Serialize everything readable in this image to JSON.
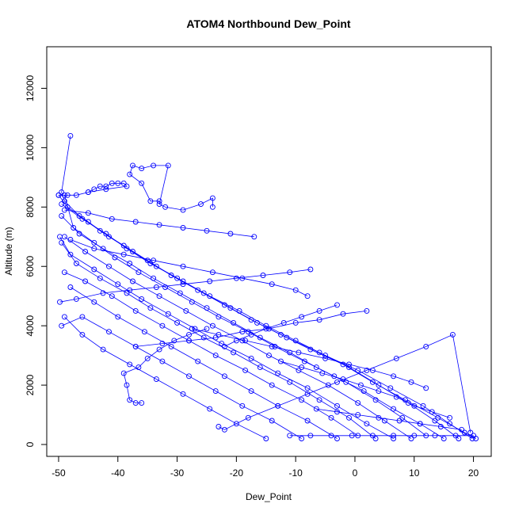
{
  "chart_data": {
    "type": "scatter",
    "title": "ATOM4 Northbound Dew_Point",
    "xlabel": "Dew_Point",
    "ylabel": "Altitude (m)",
    "xlim": [
      -52,
      23
    ],
    "ylim": [
      -400,
      13400
    ],
    "x_ticks": [
      -50,
      -40,
      -30,
      -20,
      -10,
      0,
      10,
      20
    ],
    "y_ticks": [
      0,
      2000,
      4000,
      6000,
      8000,
      10000,
      12000
    ],
    "x_tick_labels": [
      "-50",
      "-40",
      "-30",
      "-20",
      "-10",
      "0",
      "10",
      "20"
    ],
    "y_tick_labels": [
      "0",
      "2000",
      "4000",
      "6000",
      "8000",
      "10000",
      "12000"
    ],
    "grid": false,
    "color": "#0000ff",
    "series": [
      {
        "x": [
          20.4,
          18.5,
          14.0,
          8.5,
          3.0,
          -2.0,
          -7.5,
          -12.5,
          -17.5,
          -22.0,
          -26.5,
          -31.0,
          -35.0,
          -39.0,
          -43.0,
          -46.5,
          -49.0,
          -49.5,
          -48.0
        ],
        "y": [
          200,
          400,
          900,
          1500,
          2100,
          2700,
          3200,
          3700,
          4200,
          4700,
          5200,
          5700,
          6200,
          6700,
          7200,
          7700,
          8200,
          8500,
          10400
        ]
      },
      {
        "x": [
          19.8,
          16.0,
          11.5,
          6.0,
          0.5,
          -5.0,
          -10.0,
          -15.0,
          -19.5,
          -24.5,
          -29.0,
          -33.5,
          -37.5,
          -41.5,
          -45.0,
          -48.5,
          -50.0
        ],
        "y": [
          200,
          700,
          1300,
          1900,
          2500,
          3000,
          3500,
          4000,
          4500,
          5000,
          5500,
          6000,
          6500,
          7000,
          7500,
          8000,
          8400
        ]
      },
      {
        "x": [
          17.5,
          13.5,
          9.0,
          4.0,
          -1.0,
          -6.0,
          -11.5,
          -16.5,
          -21.0,
          -25.5,
          -30.0,
          -34.5,
          -38.5,
          -42.0,
          -46.0,
          -49.5
        ],
        "y": [
          200,
          800,
          1400,
          2000,
          2600,
          3100,
          3600,
          4100,
          4600,
          5100,
          5600,
          6100,
          6600,
          7100,
          7600,
          8100
        ]
      },
      {
        "x": [
          15.0,
          11.0,
          6.5,
          1.5,
          -3.5,
          -8.5,
          -13.5,
          -18.0,
          -23.0,
          -27.5,
          -32.0,
          -36.5,
          -40.5,
          -44.0,
          -47.5,
          -49.0
        ],
        "y": [
          200,
          700,
          1200,
          1800,
          2300,
          2800,
          3300,
          3800,
          4300,
          4800,
          5300,
          5800,
          6300,
          6800,
          7300,
          8400
        ]
      },
      {
        "x": [
          12.0,
          8.0,
          3.5,
          -1.5,
          -6.5,
          -11.0,
          -16.0,
          -20.5,
          -25.0,
          -29.5,
          -34.0,
          -38.0,
          -42.5,
          -46.5,
          -49.5
        ],
        "y": [
          300,
          900,
          1500,
          2100,
          2600,
          3100,
          3600,
          4100,
          4600,
          5100,
          5600,
          6100,
          6600,
          7100,
          7700
        ]
      },
      {
        "x": [
          9.5,
          5.0,
          0.5,
          -4.5,
          -9.5,
          -14.5,
          -19.0,
          -24.0,
          -28.5,
          -33.0,
          -37.5,
          -41.5,
          -45.5,
          -49.0
        ],
        "y": [
          200,
          800,
          1400,
          2000,
          2500,
          3000,
          3500,
          4000,
          4500,
          5000,
          5500,
          6000,
          6500,
          7000
        ]
      },
      {
        "x": [
          6.5,
          2.0,
          -3.0,
          -8.0,
          -13.0,
          -17.5,
          -22.5,
          -27.0,
          -31.5,
          -36.0,
          -40.0,
          -44.0,
          -48.0,
          -49.8
        ],
        "y": [
          200,
          700,
          1300,
          1900,
          2400,
          2900,
          3400,
          3900,
          4400,
          4900,
          5400,
          5900,
          6400,
          7000
        ]
      },
      {
        "x": [
          3.5,
          -1.0,
          -6.0,
          -11.0,
          -16.0,
          -20.5,
          -25.5,
          -30.0,
          -34.5,
          -38.5,
          -43.0,
          -47.0,
          -49.5
        ],
        "y": [
          200,
          900,
          1500,
          2100,
          2600,
          3100,
          3600,
          4100,
          4600,
          5100,
          5600,
          6100,
          6800
        ]
      },
      {
        "x": [
          0.5,
          -4.0,
          -9.0,
          -14.0,
          -18.5,
          -23.5,
          -28.0,
          -32.5,
          -37.0,
          -41.0,
          -45.5,
          -49.0
        ],
        "y": [
          300,
          900,
          1500,
          2000,
          2500,
          3000,
          3500,
          4000,
          4500,
          5000,
          5500,
          5800
        ]
      },
      {
        "x": [
          -3.0,
          -8.0,
          -13.0,
          -17.5,
          -22.0,
          -26.5,
          -31.0,
          -35.5,
          -40.0,
          -44.0,
          -48.0
        ],
        "y": [
          200,
          800,
          1300,
          1800,
          2300,
          2800,
          3300,
          3800,
          4300,
          4800,
          5300
        ]
      },
      {
        "x": [
          -9.0,
          -14.0,
          -19.0,
          -23.5,
          -28.0,
          -32.5,
          -37.0,
          -41.5,
          -46.0,
          -49.5
        ],
        "y": [
          200,
          800,
          1300,
          1800,
          2300,
          2800,
          3300,
          3800,
          4300,
          4000
        ]
      },
      {
        "x": [
          -15.0,
          -20.0,
          -24.5,
          -29.0,
          -33.5,
          -38.0,
          -42.5,
          -46.0,
          -49.0
        ],
        "y": [
          200,
          700,
          1200,
          1700,
          2200,
          2700,
          3200,
          3700,
          4300
        ]
      },
      {
        "x": [
          -23.0,
          -22.0,
          -18.0,
          -13.0,
          -8.0,
          -3.0,
          2.0,
          7.0,
          12.0,
          16.5,
          19.5
        ],
        "y": [
          600,
          500,
          900,
          1300,
          1700,
          2100,
          2500,
          2900,
          3300,
          3700,
          400
        ]
      },
      {
        "x": [
          -36.0,
          -37.0,
          -38.0,
          -38.5,
          -39.0,
          -36.5,
          -35.0,
          -33.0,
          -30.5,
          -28.0,
          -25.0
        ],
        "y": [
          1400,
          1400,
          1500,
          2000,
          2400,
          2600,
          2900,
          3200,
          3500,
          3700,
          3900
        ]
      },
      {
        "x": [
          -24.0,
          -24.0,
          -26.0,
          -29.0,
          -32.0,
          -33.0,
          -31.5,
          -34.0,
          -36.0,
          -37.5,
          -38.0,
          -36.0,
          -34.5,
          -33.0
        ],
        "y": [
          8000,
          8300,
          8100,
          7900,
          8000,
          8100,
          9400,
          9400,
          9300,
          9400,
          9100,
          8800,
          8200,
          8200
        ]
      },
      {
        "x": [
          -45.0,
          -44.0,
          -43.0,
          -42.0,
          -41.0,
          -40.0,
          -39.0,
          -38.5,
          -42.0,
          -45.0,
          -47.0,
          -48.5,
          -50.0
        ],
        "y": [
          8500,
          8600,
          8700,
          8700,
          8800,
          8800,
          8800,
          8700,
          8600,
          8500,
          8400,
          8400,
          8400
        ]
      },
      {
        "x": [
          -8.0,
          -10.0,
          -14.0,
          -19.0,
          -24.0,
          -29.0,
          -34.0,
          -39.0,
          -44.0,
          -48.0
        ],
        "y": [
          5000,
          5200,
          5400,
          5600,
          5800,
          6000,
          6200,
          6400,
          6600,
          6900
        ]
      },
      {
        "x": [
          -17.0,
          -21.0,
          -25.0,
          -29.0,
          -33.0,
          -37.0,
          -41.0,
          -45.0,
          -49.0
        ],
        "y": [
          7000,
          7100,
          7200,
          7300,
          7400,
          7500,
          7600,
          7800,
          7900
        ]
      },
      {
        "x": [
          -7.5,
          -11.0,
          -15.5,
          -20.0,
          -24.5,
          -29.0,
          -33.5,
          -38.0,
          -42.5,
          -47.0,
          -49.8
        ],
        "y": [
          5900,
          5800,
          5700,
          5600,
          5500,
          5400,
          5300,
          5200,
          5100,
          4900,
          4800
        ]
      },
      {
        "x": [
          2.0,
          -2.0,
          -6.0,
          -10.0,
          -14.5,
          -19.0,
          -23.5,
          -28.0,
          -32.5,
          -37.0
        ],
        "y": [
          4500,
          4400,
          4200,
          4100,
          3900,
          3800,
          3600,
          3500,
          3400,
          3300
        ]
      },
      {
        "x": [
          12.0,
          9.5,
          6.5,
          3.0,
          -1.0,
          -5.0,
          -9.5,
          -14.0,
          -18.5,
          -23.0,
          -27.5
        ],
        "y": [
          1900,
          2100,
          2300,
          2500,
          2700,
          2900,
          3100,
          3300,
          3500,
          3700,
          3900
        ]
      },
      {
        "x": [
          16.0,
          13.0,
          10.0,
          7.0,
          4.0,
          1.0,
          -2.0,
          -5.5,
          -9.0,
          -12.5
        ],
        "y": [
          900,
          1100,
          1300,
          1600,
          1800,
          2000,
          2200,
          2400,
          2600,
          2800
        ]
      },
      {
        "x": [
          18.0,
          14.5,
          11.0,
          7.5,
          4.0,
          0.5,
          -3.0,
          -6.5
        ],
        "y": [
          500,
          600,
          700,
          800,
          900,
          1000,
          1100,
          1200
        ]
      },
      {
        "x": [
          20.0,
          17.0,
          13.5,
          10.0,
          6.5,
          3.0,
          -0.5,
          -4.0,
          -7.5,
          -11.0
        ],
        "y": [
          300,
          300,
          300,
          300,
          300,
          300,
          300,
          300,
          300,
          300
        ]
      },
      {
        "x": [
          -22.0,
          -20.0,
          -17.5,
          -15.0,
          -12.0,
          -9.0,
          -6.0,
          -3.0
        ],
        "y": [
          3300,
          3500,
          3700,
          3900,
          4100,
          4300,
          4500,
          4700
        ]
      }
    ]
  }
}
